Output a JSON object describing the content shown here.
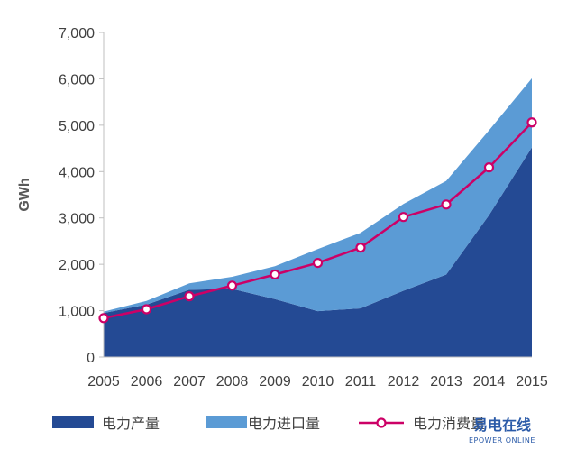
{
  "chart_data": {
    "type": "area",
    "title": "",
    "xlabel": "",
    "ylabel": "GWh",
    "x": [
      "2005",
      "2006",
      "2007",
      "2008",
      "2009",
      "2010",
      "2011",
      "2012",
      "2013",
      "2014",
      "2015"
    ],
    "ylim": [
      0,
      7000
    ],
    "yticks": [
      0,
      1000,
      2000,
      3000,
      4000,
      5000,
      6000,
      7000
    ],
    "ytick_labels": [
      "0",
      "1,000",
      "2,000",
      "3,000",
      "4,000",
      "5,000",
      "6,000",
      "7,000"
    ],
    "grid": false,
    "legend": "bottom",
    "series": [
      {
        "name": "电力产量",
        "kind": "area-stacked",
        "color": "#244a94",
        "values": [
          950,
          1130,
          1450,
          1470,
          1250,
          990,
          1050,
          1430,
          1780,
          3060,
          4520
        ]
      },
      {
        "name": "电力进口量",
        "kind": "area-stacked",
        "color": "#5b9bd5",
        "values": [
          30,
          80,
          140,
          260,
          710,
          1340,
          1630,
          1870,
          2020,
          1830,
          1490
        ]
      },
      {
        "name": "电力消费量",
        "kind": "line-markers",
        "color": "#cc0066",
        "values": [
          840,
          1030,
          1310,
          1540,
          1780,
          2030,
          2360,
          3020,
          3290,
          4090,
          5060
        ]
      }
    ]
  },
  "watermark": {
    "name_cn": "易电在线",
    "name_en": "EPOWER ONLINE"
  }
}
